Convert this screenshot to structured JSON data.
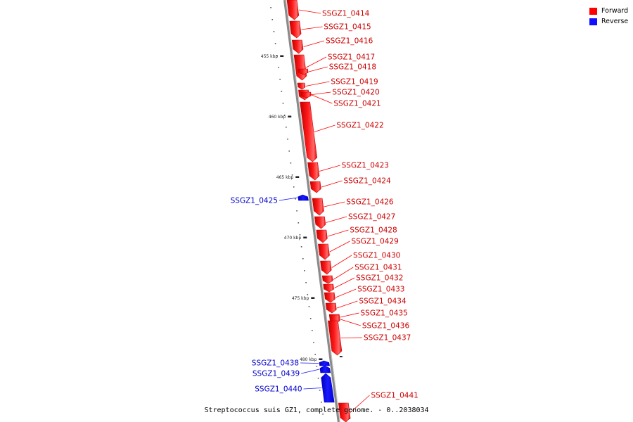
{
  "legend": {
    "forward_label": "Forward",
    "forward_color": "#ff0000",
    "reverse_label": "Reverse",
    "reverse_color": "#1010ff"
  },
  "caption": "Streptococcus suis GZ1, complete genome. - 0..2038034",
  "ticks": [
    "455 kbp",
    "460 kbp",
    "465 kbp",
    "470 kbp",
    "475 kbp",
    "480 kbp"
  ],
  "genes": [
    {
      "id": "SSGZ1_0414",
      "strand": "forward"
    },
    {
      "id": "SSGZ1_0415",
      "strand": "forward"
    },
    {
      "id": "SSGZ1_0416",
      "strand": "forward"
    },
    {
      "id": "SSGZ1_0417",
      "strand": "forward"
    },
    {
      "id": "SSGZ1_0418",
      "strand": "forward"
    },
    {
      "id": "SSGZ1_0419",
      "strand": "forward"
    },
    {
      "id": "SSGZ1_0420",
      "strand": "forward"
    },
    {
      "id": "SSGZ1_0421",
      "strand": "forward"
    },
    {
      "id": "SSGZ1_0422",
      "strand": "forward"
    },
    {
      "id": "SSGZ1_0423",
      "strand": "forward"
    },
    {
      "id": "SSGZ1_0424",
      "strand": "forward"
    },
    {
      "id": "SSGZ1_0425",
      "strand": "reverse"
    },
    {
      "id": "SSGZ1_0426",
      "strand": "forward"
    },
    {
      "id": "SSGZ1_0427",
      "strand": "forward"
    },
    {
      "id": "SSGZ1_0428",
      "strand": "forward"
    },
    {
      "id": "SSGZ1_0429",
      "strand": "forward"
    },
    {
      "id": "SSGZ1_0430",
      "strand": "forward"
    },
    {
      "id": "SSGZ1_0431",
      "strand": "forward"
    },
    {
      "id": "SSGZ1_0432",
      "strand": "forward"
    },
    {
      "id": "SSGZ1_0433",
      "strand": "forward"
    },
    {
      "id": "SSGZ1_0434",
      "strand": "forward"
    },
    {
      "id": "SSGZ1_0435",
      "strand": "forward"
    },
    {
      "id": "SSGZ1_0436",
      "strand": "forward"
    },
    {
      "id": "SSGZ1_0437",
      "strand": "forward"
    },
    {
      "id": "SSGZ1_0438",
      "strand": "reverse"
    },
    {
      "id": "SSGZ1_0439",
      "strand": "reverse"
    },
    {
      "id": "SSGZ1_0440",
      "strand": "reverse"
    },
    {
      "id": "SSGZ1_0441",
      "strand": "forward"
    }
  ]
}
